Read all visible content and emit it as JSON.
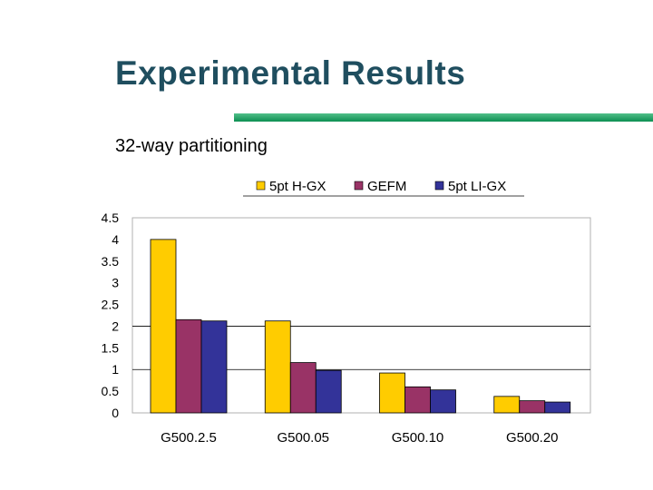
{
  "slide": {
    "title": "Experimental Results",
    "subtitle": "32-way partitioning"
  },
  "chart_data": {
    "type": "bar",
    "categories": [
      "G500.2.5",
      "G500.05",
      "G500.10",
      "G500.20"
    ],
    "series": [
      {
        "name": "5pt H-GX",
        "values": [
          4.0,
          2.12,
          0.92,
          0.38
        ],
        "color": "#ffcc00"
      },
      {
        "name": "GEFM",
        "values": [
          2.15,
          1.16,
          0.6,
          0.28
        ],
        "color": "#993366"
      },
      {
        "name": "5pt LI-GX",
        "values": [
          2.12,
          0.98,
          0.53,
          0.25
        ],
        "color": "#333399"
      }
    ],
    "ylim": [
      0,
      4.5
    ],
    "yticks": [
      "0",
      "0.5",
      "1",
      "1.5",
      "2",
      "2.5",
      "3",
      "3.5",
      "4",
      "4.5"
    ],
    "gridlines": [
      2,
      1
    ],
    "legend_position": "top"
  }
}
